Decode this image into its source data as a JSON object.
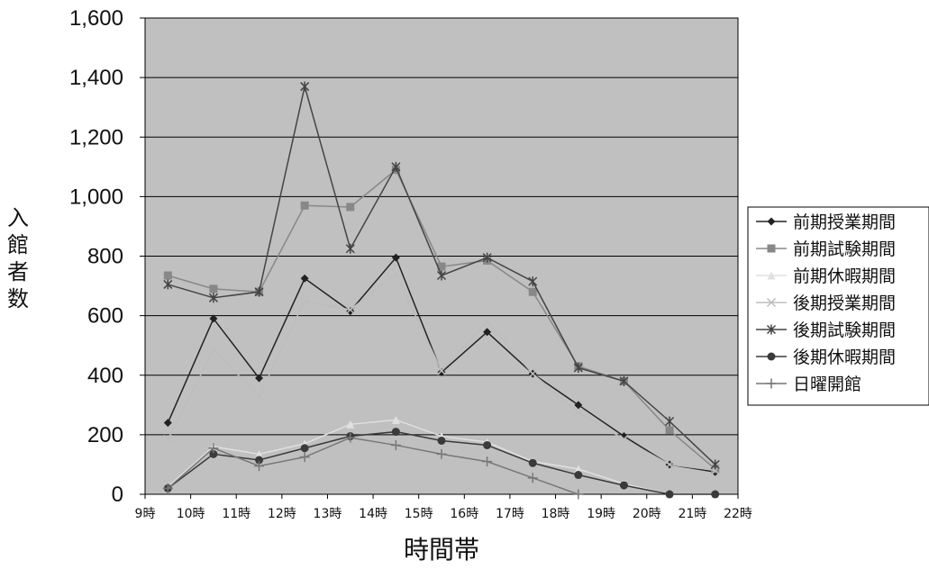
{
  "chart_data": {
    "type": "line",
    "title": "",
    "xlabel": "時間帯",
    "ylabel": "入館者数",
    "x_ticks": [
      "9時",
      "10時",
      "11時",
      "12時",
      "13時",
      "14時",
      "15時",
      "16時",
      "17時",
      "18時",
      "19時",
      "20時",
      "21時",
      "22時"
    ],
    "categories": [
      "9時-10時",
      "10時-11時",
      "11時-12時",
      "12時-13時",
      "13時-14時",
      "14時-15時",
      "15時-16時",
      "16時-17時",
      "17時-18時",
      "18時-19時",
      "19時-20時",
      "20時-21時",
      "21時-22時"
    ],
    "y_ticks": [
      "0",
      "200",
      "400",
      "600",
      "800",
      "1,000",
      "1,200",
      "1,400",
      "1,600"
    ],
    "ylim": [
      0,
      1600
    ],
    "grid": true,
    "legend_position": "right",
    "series": [
      {
        "name": "前期授業期間",
        "color": "#222222",
        "marker": "diamond",
        "values": [
          240,
          590,
          390,
          725,
          615,
          795,
          410,
          545,
          405,
          300,
          195,
          100,
          75
        ]
      },
      {
        "name": "前期試験期間",
        "color": "#888888",
        "marker": "square",
        "values": [
          735,
          690,
          680,
          970,
          965,
          1090,
          765,
          785,
          680,
          430,
          380,
          215,
          85
        ]
      },
      {
        "name": "前期休暇期間",
        "color": "#e0e0e0",
        "marker": "triangle",
        "values": [
          25,
          160,
          135,
          170,
          235,
          250,
          195,
          175,
          110,
          85,
          35,
          0,
          0
        ]
      },
      {
        "name": "後期授業期間",
        "color": "#bdbdbd",
        "marker": "x",
        "values": [
          185,
          485,
          330,
          650,
          620,
          740,
          415,
          580,
          405,
          275,
          185,
          100,
          80
        ]
      },
      {
        "name": "後期試験期間",
        "color": "#444444",
        "marker": "star",
        "values": [
          705,
          660,
          680,
          1370,
          825,
          1100,
          735,
          795,
          715,
          425,
          380,
          245,
          100
        ]
      },
      {
        "name": "後期休暇期間",
        "color": "#3a3a3a",
        "marker": "circle",
        "values": [
          20,
          135,
          115,
          155,
          195,
          210,
          180,
          165,
          105,
          65,
          30,
          0,
          0
        ]
      },
      {
        "name": "日曜開館",
        "color": "#777777",
        "marker": "plus",
        "values": [
          20,
          155,
          95,
          125,
          190,
          165,
          135,
          110,
          55,
          0,
          null,
          null,
          null
        ]
      }
    ]
  }
}
